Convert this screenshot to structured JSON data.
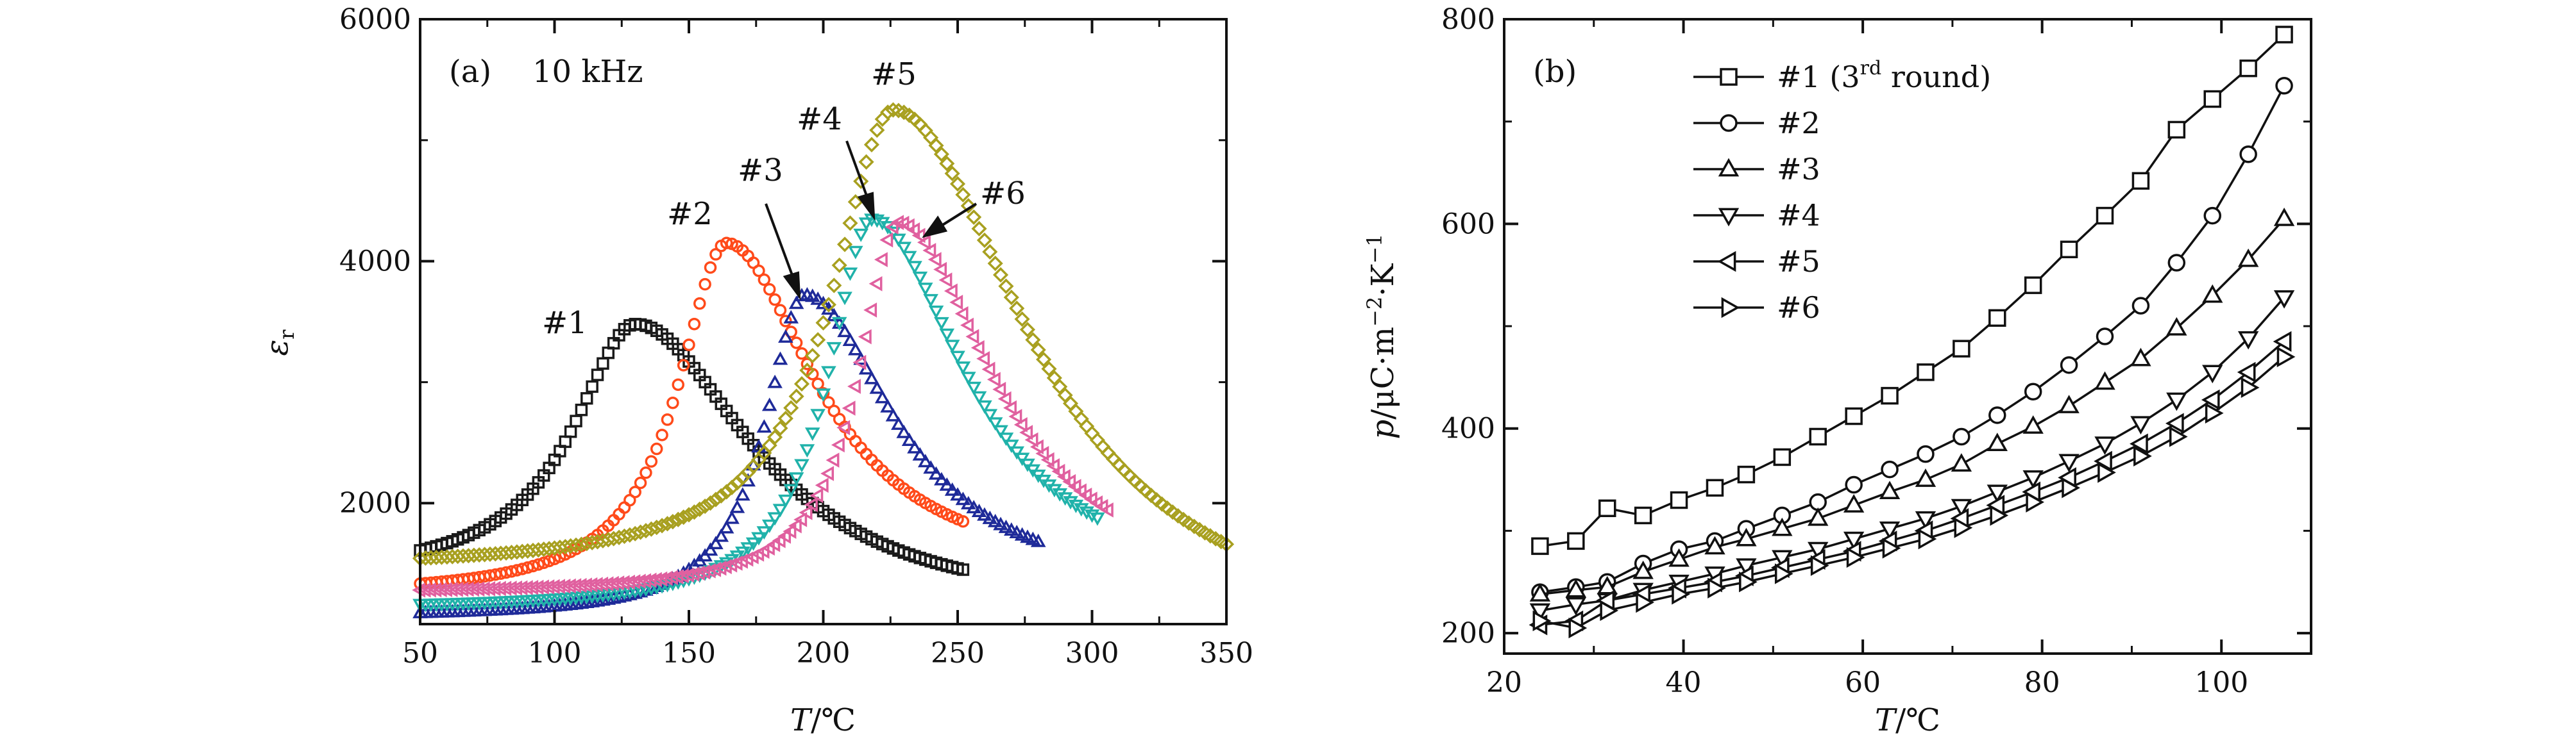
{
  "chart_data": [
    {
      "type": "scatter",
      "panel_label": "(a)",
      "frequency_label": "10 kHz",
      "xlabel_var": "T",
      "xlabel_unit": "/℃",
      "ylabel_var": "ε",
      "ylabel_sub": "r",
      "xlim": [
        50,
        350
      ],
      "ylim": [
        1000,
        6000
      ],
      "x_ticks": [
        "50",
        "100",
        "150",
        "200",
        "250",
        "300",
        "350"
      ],
      "y_ticks": [
        "2000",
        "4000",
        "6000"
      ],
      "y_tick_values": [
        2000,
        4000,
        6000
      ],
      "series": [
        {
          "name": "#1",
          "color": "#1a1a1a",
          "marker": "square",
          "x_start": 50,
          "x_end": 252,
          "peak_x": 130,
          "peak_y": 3480,
          "y_left": 1380,
          "y_right": 1450,
          "w_left": 28,
          "w_right": 52
        },
        {
          "name": "#2",
          "color": "#ff4a1a",
          "marker": "circle",
          "x_start": 50,
          "x_end": 253,
          "peak_x": 164,
          "peak_y": 4150,
          "y_left": 1230,
          "y_right": 1840,
          "w_left": 22,
          "w_right": 40
        },
        {
          "name": "#3",
          "color": "#1e2a99",
          "marker": "triangle-up",
          "x_start": 50,
          "x_end": 280,
          "peak_x": 193,
          "peak_y": 3720,
          "y_left": 1050,
          "y_right": 1680,
          "w_left": 18,
          "w_right": 40
        },
        {
          "name": "#4",
          "color": "#20b2aa",
          "marker": "triangle-down",
          "x_start": 50,
          "x_end": 302,
          "peak_x": 218,
          "peak_y": 4350,
          "y_left": 1120,
          "y_right": 1880,
          "w_left": 20,
          "w_right": 42
        },
        {
          "name": "#5",
          "color": "#a8a020",
          "marker": "diamond",
          "x_start": 50,
          "x_end": 350,
          "peak_x": 226,
          "peak_y": 5250,
          "y_left": 1450,
          "y_right": 1660,
          "w_left": 28,
          "w_right": 60
        },
        {
          "name": "#6",
          "color": "#e0609f",
          "marker": "triangle-left",
          "x_start": 50,
          "x_end": 307,
          "peak_x": 228,
          "peak_y": 4320,
          "y_left": 1250,
          "y_right": 1930,
          "w_left": 18,
          "w_right": 42
        }
      ],
      "annotations": [
        {
          "text": "#1"
        },
        {
          "text": "#2"
        },
        {
          "text": "#3"
        },
        {
          "text": "#4"
        },
        {
          "text": "#5"
        },
        {
          "text": "#6"
        }
      ]
    },
    {
      "type": "line",
      "panel_label": "(b)",
      "xlabel_var": "T",
      "xlabel_unit": "/℃",
      "ylabel_var": "p",
      "ylabel_unit": "/μC·m",
      "ylabel_exp1": "−2",
      "ylabel_mid": "·K",
      "ylabel_exp2": "−1",
      "xlim": [
        20,
        110
      ],
      "ylim": [
        180,
        800
      ],
      "x_ticks": [
        "20",
        "40",
        "60",
        "80",
        "100"
      ],
      "x_tick_values": [
        20,
        40,
        60,
        80,
        100
      ],
      "y_ticks": [
        "200",
        "400",
        "600",
        "800"
      ],
      "y_tick_values": [
        200,
        400,
        600,
        800
      ],
      "x": [
        24,
        28,
        31.5,
        35.5,
        39.5,
        43.5,
        47,
        51,
        55,
        59,
        63,
        67,
        71,
        75,
        79,
        83,
        87,
        91,
        95,
        99,
        103,
        107
      ],
      "series": [
        {
          "name": "#1 (3rd round)",
          "legend_main": "#1 (3",
          "legend_sup": "rd",
          "legend_tail": " round)",
          "marker": "square",
          "values": [
            285,
            290,
            322,
            315,
            330,
            342,
            355,
            372,
            392,
            412,
            432,
            455,
            478,
            508,
            540,
            575,
            608,
            642,
            692,
            722,
            752,
            785
          ]
        },
        {
          "name": "#2",
          "legend_main": "#2",
          "legend_sup": "",
          "legend_tail": "",
          "marker": "circle",
          "values": [
            240,
            245,
            250,
            268,
            282,
            290,
            302,
            315,
            328,
            345,
            360,
            375,
            392,
            413,
            436,
            462,
            490,
            520,
            562,
            608,
            668,
            735
          ]
        },
        {
          "name": "#3",
          "legend_main": "#3",
          "legend_sup": "",
          "legend_tail": "",
          "marker": "triangle-up",
          "values": [
            238,
            242,
            245,
            260,
            272,
            284,
            292,
            302,
            312,
            325,
            338,
            350,
            365,
            385,
            402,
            422,
            445,
            468,
            498,
            530,
            565,
            605
          ]
        },
        {
          "name": "#4",
          "legend_main": "#4",
          "legend_sup": "",
          "legend_tail": "",
          "marker": "triangle-down",
          "values": [
            222,
            228,
            232,
            242,
            250,
            258,
            266,
            274,
            282,
            292,
            302,
            312,
            324,
            338,
            352,
            368,
            385,
            405,
            428,
            455,
            488,
            528
          ]
        },
        {
          "name": "#5",
          "legend_main": "#5",
          "legend_sup": "",
          "legend_tail": "",
          "marker": "triangle-left",
          "values": [
            208,
            212,
            232,
            238,
            244,
            250,
            256,
            264,
            272,
            280,
            290,
            300,
            312,
            325,
            338,
            352,
            368,
            385,
            405,
            428,
            455,
            485
          ]
        },
        {
          "name": "#6",
          "legend_main": "#6",
          "legend_sup": "",
          "legend_tail": "",
          "marker": "triangle-right",
          "values": [
            212,
            205,
            222,
            230,
            238,
            244,
            250,
            258,
            266,
            274,
            283,
            292,
            303,
            315,
            328,
            342,
            357,
            373,
            392,
            415,
            440,
            470
          ]
        }
      ]
    }
  ]
}
